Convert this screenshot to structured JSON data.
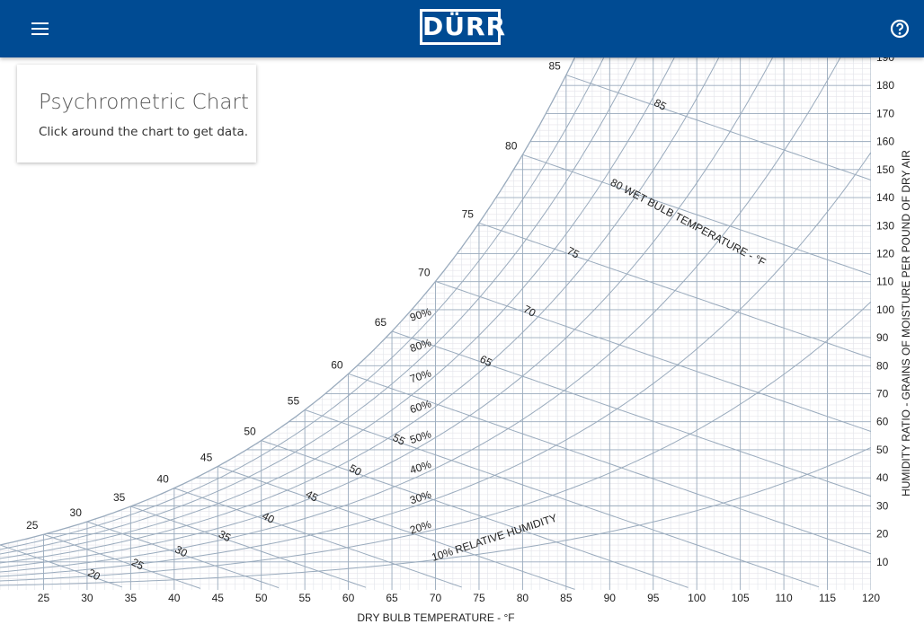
{
  "header": {
    "menu_icon": "hamburger-menu-icon",
    "logo_text": "DÜRR",
    "help_icon": "help-circle-icon",
    "bg_color": "#004b93"
  },
  "card": {
    "title": "Psychrometric Chart",
    "subtitle": "Click around the chart to get data."
  },
  "chart_data": {
    "type": "line",
    "xlabel": "DRY BULB TEMPERATURE - °F",
    "ylabel": "HUMIDITY RATIO - GRAINS OF MOISTURE PER POUND OF DRY AIR",
    "xlim": [
      20,
      120
    ],
    "ylim": [
      0,
      190
    ],
    "x_ticks": [
      25,
      30,
      35,
      40,
      45,
      50,
      55,
      60,
      65,
      70,
      75,
      80,
      85,
      90,
      95,
      100,
      105,
      110,
      115,
      120
    ],
    "y_ticks": [
      10,
      20,
      30,
      40,
      50,
      60,
      70,
      80,
      90,
      100,
      110,
      120,
      130,
      140,
      150,
      160,
      170,
      180,
      190
    ],
    "relative_humidity_curves": [
      10,
      20,
      30,
      40,
      50,
      60,
      70,
      80,
      90,
      100
    ],
    "rh_labels": [
      "10% RELATIVE HUMIDITY",
      "20%",
      "30%",
      "40%",
      "50%",
      "60%",
      "70%",
      "80%",
      "90%"
    ],
    "wet_bulb_lines": [
      20,
      25,
      30,
      35,
      40,
      45,
      50,
      55,
      60,
      65,
      70,
      75,
      80,
      85
    ],
    "wet_bulb_labels": [
      "20",
      "25",
      "30",
      "35",
      "40",
      "45",
      "50",
      "55",
      "65",
      "70",
      "75",
      "80 WET BULB TEMPERATURE - °F",
      "85"
    ],
    "saturation_labels": [
      "25",
      "30",
      "35",
      "40",
      "45",
      "50",
      "55",
      "60",
      "65",
      "70",
      "75",
      "80",
      "85"
    ],
    "grid": true,
    "line_color": "#9aabbd"
  }
}
